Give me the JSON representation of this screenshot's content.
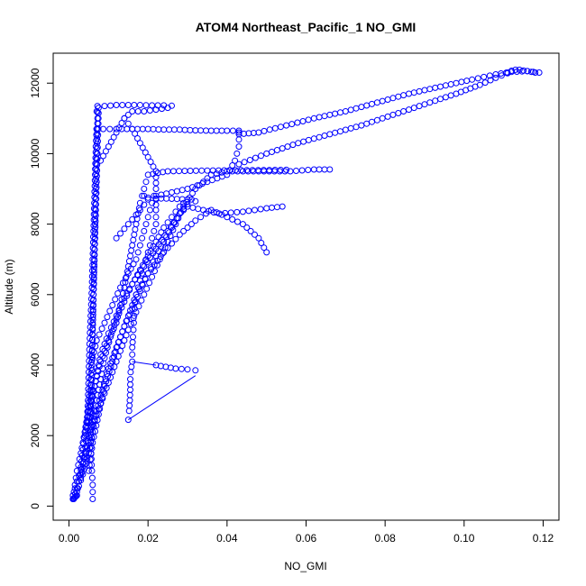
{
  "chart_data": {
    "type": "scatter",
    "title": "ATOM4 Northeast_Pacific_1 NO_GMI",
    "xlabel": "NO_GMI",
    "ylabel": "Altitude (m)",
    "xlim": [
      -0.004,
      0.124
    ],
    "ylim": [
      -400,
      12850
    ],
    "xticks": [
      0.0,
      0.02,
      0.04,
      0.06,
      0.08,
      0.1,
      0.12
    ],
    "xtick_labels": [
      "0.00",
      "0.02",
      "0.04",
      "0.06",
      "0.08",
      "0.10",
      "0.12"
    ],
    "yticks": [
      0,
      2000,
      4000,
      6000,
      8000,
      10000,
      12000
    ],
    "ytick_labels": [
      "0",
      "2000",
      "4000",
      "6000",
      "8000",
      "10000",
      "12000"
    ],
    "grid": false,
    "marker": "open-circle",
    "color": "#0000ff",
    "series": [
      {
        "points": [
          [
            0.001,
            200
          ],
          [
            0.0015,
            600
          ],
          [
            0.002,
            1000
          ],
          [
            0.003,
            1500
          ],
          [
            0.004,
            2100
          ],
          [
            0.005,
            2800
          ],
          [
            0.0055,
            3600
          ],
          [
            0.0058,
            4400
          ],
          [
            0.006,
            5200
          ],
          [
            0.0062,
            6000
          ],
          [
            0.0064,
            6800
          ],
          [
            0.0066,
            7600
          ],
          [
            0.0068,
            8400
          ],
          [
            0.007,
            9200
          ],
          [
            0.0072,
            10000
          ],
          [
            0.0074,
            10700
          ],
          [
            0.0075,
            11300
          ]
        ]
      },
      {
        "points": [
          [
            0.0012,
            200
          ],
          [
            0.002,
            500
          ],
          [
            0.003,
            900
          ],
          [
            0.004,
            1500
          ],
          [
            0.0045,
            2200
          ],
          [
            0.0048,
            3000
          ],
          [
            0.005,
            3800
          ],
          [
            0.0052,
            4600
          ],
          [
            0.0055,
            5400
          ],
          [
            0.0058,
            6200
          ],
          [
            0.006,
            7000
          ],
          [
            0.0062,
            7800
          ],
          [
            0.0064,
            8600
          ],
          [
            0.0066,
            9400
          ],
          [
            0.0068,
            10200
          ],
          [
            0.007,
            10700
          ]
        ]
      },
      {
        "points": [
          [
            0.006,
            200
          ],
          [
            0.006,
            600
          ],
          [
            0.0058,
            1000
          ],
          [
            0.0056,
            1500
          ],
          [
            0.0055,
            2200
          ],
          [
            0.0056,
            3000
          ],
          [
            0.0058,
            4000
          ],
          [
            0.006,
            5000
          ],
          [
            0.0062,
            6000
          ],
          [
            0.0064,
            7000
          ],
          [
            0.0066,
            8000
          ],
          [
            0.0068,
            9000
          ],
          [
            0.007,
            10000
          ],
          [
            0.0072,
            11000
          ],
          [
            0.0072,
            11350
          ]
        ]
      },
      {
        "points": [
          [
            0.001,
            300
          ],
          [
            0.002,
            700
          ],
          [
            0.0035,
            1200
          ],
          [
            0.005,
            1800
          ],
          [
            0.006,
            2400
          ],
          [
            0.007,
            3000
          ],
          [
            0.008,
            3600
          ],
          [
            0.009,
            4200
          ],
          [
            0.0105,
            4800
          ],
          [
            0.012,
            5300
          ],
          [
            0.014,
            5800
          ],
          [
            0.016,
            6300
          ],
          [
            0.019,
            6800
          ],
          [
            0.022,
            7300
          ],
          [
            0.025,
            7800
          ],
          [
            0.028,
            8300
          ],
          [
            0.031,
            8700
          ]
        ]
      },
      {
        "points": [
          [
            0.002,
            400
          ],
          [
            0.0035,
            900
          ],
          [
            0.005,
            1500
          ],
          [
            0.006,
            2100
          ],
          [
            0.007,
            2700
          ],
          [
            0.0085,
            3300
          ],
          [
            0.01,
            3900
          ],
          [
            0.012,
            4500
          ],
          [
            0.014,
            5100
          ],
          [
            0.016,
            5600
          ],
          [
            0.018,
            6100
          ],
          [
            0.02,
            6600
          ],
          [
            0.022,
            7100
          ],
          [
            0.024,
            7500
          ],
          [
            0.026,
            7900
          ],
          [
            0.028,
            8300
          ],
          [
            0.03,
            8500
          ],
          [
            0.034,
            8400
          ],
          [
            0.038,
            8300
          ],
          [
            0.044,
            8350
          ],
          [
            0.05,
            8450
          ],
          [
            0.054,
            8500
          ]
        ]
      },
      {
        "points": [
          [
            0.003,
            800
          ],
          [
            0.004,
            1400
          ],
          [
            0.005,
            2000
          ],
          [
            0.007,
            2600
          ],
          [
            0.009,
            3200
          ],
          [
            0.011,
            3800
          ],
          [
            0.013,
            4400
          ],
          [
            0.015,
            5000
          ],
          [
            0.017,
            5500
          ],
          [
            0.019,
            6000
          ],
          [
            0.021,
            6500
          ],
          [
            0.023,
            7000
          ],
          [
            0.025,
            7500
          ],
          [
            0.027,
            8000
          ],
          [
            0.029,
            8500
          ],
          [
            0.032,
            9000
          ],
          [
            0.036,
            9400
          ],
          [
            0.04,
            9500
          ],
          [
            0.048,
            9500
          ],
          [
            0.056,
            9500
          ],
          [
            0.062,
            9550
          ],
          [
            0.066,
            9550
          ]
        ]
      },
      {
        "points": [
          [
            0.005,
            1000
          ],
          [
            0.006,
            1800
          ],
          [
            0.0075,
            2600
          ],
          [
            0.009,
            3400
          ],
          [
            0.011,
            4100
          ],
          [
            0.013,
            4800
          ],
          [
            0.015,
            5400
          ],
          [
            0.017,
            6000
          ],
          [
            0.02,
            6600
          ],
          [
            0.024,
            7200
          ],
          [
            0.028,
            7700
          ],
          [
            0.032,
            8100
          ],
          [
            0.036,
            8400
          ],
          [
            0.04,
            8200
          ],
          [
            0.044,
            8000
          ],
          [
            0.048,
            7600
          ],
          [
            0.05,
            7200
          ]
        ]
      },
      {
        "points": [
          [
            0.004,
            2000
          ],
          [
            0.005,
            2700
          ],
          [
            0.0065,
            3400
          ],
          [
            0.008,
            4100
          ],
          [
            0.01,
            4700
          ],
          [
            0.012,
            5200
          ],
          [
            0.013,
            5700
          ],
          [
            0.014,
            6200
          ],
          [
            0.015,
            6800
          ],
          [
            0.016,
            7400
          ],
          [
            0.017,
            8000
          ],
          [
            0.018,
            8600
          ],
          [
            0.019,
            9000
          ],
          [
            0.02,
            9400
          ],
          [
            0.025,
            9500
          ],
          [
            0.035,
            9520
          ],
          [
            0.045,
            9530
          ],
          [
            0.055,
            9540
          ]
        ]
      },
      {
        "points": [
          [
            0.005,
            2400
          ],
          [
            0.006,
            3100
          ],
          [
            0.007,
            3700
          ],
          [
            0.008,
            4300
          ],
          [
            0.01,
            4900
          ],
          [
            0.012,
            5400
          ],
          [
            0.014,
            5900
          ],
          [
            0.016,
            6300
          ],
          [
            0.018,
            6700
          ],
          [
            0.02,
            7100
          ],
          [
            0.022,
            7500
          ],
          [
            0.024,
            7900
          ],
          [
            0.026,
            8200
          ],
          [
            0.028,
            8500
          ],
          [
            0.03,
            8700
          ],
          [
            0.032,
            8650
          ],
          [
            0.03,
            8700
          ],
          [
            0.026,
            8720
          ],
          [
            0.022,
            8730
          ],
          [
            0.02,
            8750
          ],
          [
            0.019,
            8800
          ]
        ]
      },
      {
        "points": [
          [
            0.012,
            7600
          ],
          [
            0.015,
            8000
          ],
          [
            0.018,
            8400
          ],
          [
            0.02,
            8700
          ],
          [
            0.022,
            8800
          ],
          [
            0.026,
            8900
          ],
          [
            0.03,
            9000
          ],
          [
            0.035,
            9200
          ],
          [
            0.04,
            9400
          ],
          [
            0.042,
            9800
          ],
          [
            0.043,
            10200
          ],
          [
            0.043,
            10600
          ]
        ]
      },
      {
        "points": [
          [
            0.007,
            10700
          ],
          [
            0.012,
            10700
          ],
          [
            0.016,
            10700
          ],
          [
            0.02,
            10700
          ],
          [
            0.024,
            10680
          ],
          [
            0.028,
            10680
          ],
          [
            0.032,
            10660
          ],
          [
            0.036,
            10650
          ],
          [
            0.04,
            10650
          ],
          [
            0.043,
            10650
          ]
        ]
      },
      {
        "points": [
          [
            0.007,
            11200
          ],
          [
            0.009,
            11350
          ],
          [
            0.012,
            11380
          ],
          [
            0.015,
            11380
          ],
          [
            0.018,
            11380
          ],
          [
            0.021,
            11370
          ],
          [
            0.024,
            11370
          ],
          [
            0.026,
            11360
          ]
        ]
      },
      {
        "points": [
          [
            0.008,
            9800
          ],
          [
            0.01,
            10200
          ],
          [
            0.012,
            10600
          ],
          [
            0.014,
            11000
          ],
          [
            0.016,
            11200
          ],
          [
            0.019,
            11200
          ],
          [
            0.022,
            11250
          ],
          [
            0.025,
            11300
          ]
        ]
      },
      {
        "points": [
          [
            0.043,
            10550
          ],
          [
            0.048,
            10600
          ],
          [
            0.055,
            10800
          ],
          [
            0.062,
            11000
          ],
          [
            0.07,
            11200
          ],
          [
            0.078,
            11450
          ],
          [
            0.086,
            11700
          ],
          [
            0.094,
            11900
          ],
          [
            0.102,
            12100
          ],
          [
            0.108,
            12250
          ],
          [
            0.112,
            12320
          ],
          [
            0.116,
            12340
          ],
          [
            0.119,
            12300
          ]
        ]
      },
      {
        "points": [
          [
            0.043,
            9700
          ],
          [
            0.05,
            10000
          ],
          [
            0.058,
            10300
          ],
          [
            0.066,
            10550
          ],
          [
            0.074,
            10800
          ],
          [
            0.082,
            11100
          ],
          [
            0.09,
            11400
          ],
          [
            0.098,
            11700
          ],
          [
            0.104,
            11950
          ],
          [
            0.108,
            12150
          ],
          [
            0.111,
            12280
          ]
        ]
      },
      {
        "points": [
          [
            0.111,
            12300
          ],
          [
            0.112,
            12350
          ],
          [
            0.113,
            12380
          ],
          [
            0.114,
            12380
          ],
          [
            0.115,
            12360
          ],
          [
            0.116,
            12340
          ],
          [
            0.117,
            12320
          ],
          [
            0.118,
            12300
          ]
        ]
      },
      {
        "points": [
          [
            0.015,
            2450
          ],
          [
            0.0152,
            2700
          ],
          [
            0.0154,
            3000
          ],
          [
            0.0155,
            3300
          ],
          [
            0.0155,
            3600
          ],
          [
            0.0156,
            3800
          ],
          [
            0.016,
            4100
          ],
          [
            0.016,
            4300
          ],
          [
            0.016,
            4500
          ],
          [
            0.0162,
            4800
          ],
          [
            0.0164,
            5200
          ],
          [
            0.0166,
            5600
          ],
          [
            0.017,
            6000
          ],
          [
            0.018,
            6400
          ],
          [
            0.019,
            6800
          ],
          [
            0.02,
            7200
          ],
          [
            0.021,
            7600
          ],
          [
            0.022,
            8000
          ],
          [
            0.022,
            8400
          ],
          [
            0.022,
            8700
          ]
        ]
      },
      {
        "points": [
          [
            0.022,
            4000
          ],
          [
            0.027,
            3900
          ],
          [
            0.03,
            3880
          ],
          [
            0.032,
            3850
          ]
        ]
      },
      {
        "points": [
          [
            0.001,
            200
          ],
          [
            0.0012,
            220
          ],
          [
            0.0014,
            240
          ],
          [
            0.0016,
            260
          ],
          [
            0.0018,
            280
          ],
          [
            0.002,
            300
          ],
          [
            0.0025,
            700
          ],
          [
            0.003,
            1100
          ],
          [
            0.0035,
            1600
          ],
          [
            0.004,
            2100
          ],
          [
            0.005,
            2700
          ],
          [
            0.006,
            3300
          ]
        ]
      },
      {
        "points": [
          [
            0.006,
            4200
          ],
          [
            0.007,
            4700
          ],
          [
            0.009,
            5200
          ],
          [
            0.011,
            5700
          ],
          [
            0.013,
            6200
          ],
          [
            0.015,
            6600
          ],
          [
            0.017,
            7000
          ],
          [
            0.018,
            7400
          ],
          [
            0.019,
            7800
          ],
          [
            0.02,
            8200
          ],
          [
            0.021,
            8600
          ],
          [
            0.022,
            9000
          ],
          [
            0.022,
            9500
          ],
          [
            0.02,
            9900
          ],
          [
            0.018,
            10300
          ],
          [
            0.016,
            10700
          ],
          [
            0.014,
            11000
          ]
        ]
      }
    ],
    "lines": [
      {
        "points": [
          [
            0.015,
            2450
          ],
          [
            0.032,
            3700
          ]
        ]
      },
      {
        "points": [
          [
            0.016,
            4100
          ],
          [
            0.022,
            4000
          ]
        ]
      }
    ]
  }
}
